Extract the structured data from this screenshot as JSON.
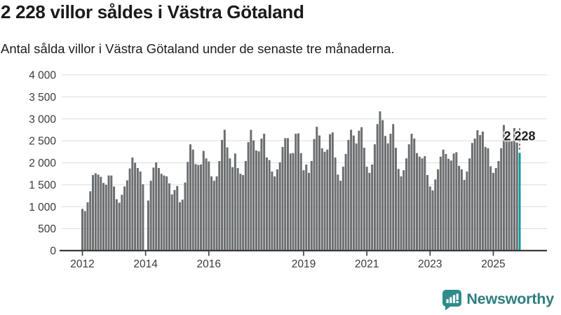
{
  "header": {
    "title": "2 228 villor såldes i Västra Götaland",
    "subtitle": "Antal sålda villor i Västra Götaland under de senaste tre månaderna."
  },
  "chart_data": {
    "type": "bar",
    "title": "2 228 villor såldes i Västra Götaland",
    "subtitle": "Antal sålda villor i Västra Götaland under de senaste tre månaderna.",
    "x_unit": "month",
    "x_range_years": "2012 till 2025",
    "ylim": [
      0,
      4000
    ],
    "grid": true,
    "y_ticks": [
      {
        "value": 0,
        "label": "0"
      },
      {
        "value": 500,
        "label": "500"
      },
      {
        "value": 1000,
        "label": "1 000"
      },
      {
        "value": 1500,
        "label": "1 500"
      },
      {
        "value": 2000,
        "label": "2 000"
      },
      {
        "value": 2500,
        "label": "2 500"
      },
      {
        "value": 3000,
        "label": "3 000"
      },
      {
        "value": 3500,
        "label": "3 500"
      },
      {
        "value": 4000,
        "label": "4 000"
      }
    ],
    "x_ticks": [
      {
        "label": "2012",
        "index": 0
      },
      {
        "label": "2014",
        "index": 24
      },
      {
        "label": "2016",
        "index": 48
      },
      {
        "label": "2019",
        "index": 84
      },
      {
        "label": "2021",
        "index": 108
      },
      {
        "label": "2023",
        "index": 132
      },
      {
        "label": "2025",
        "index": 156
      }
    ],
    "values": [
      950,
      900,
      1100,
      1350,
      1720,
      1760,
      1730,
      1680,
      1540,
      1500,
      1710,
      1710,
      1460,
      1170,
      1090,
      1270,
      1460,
      1600,
      1870,
      2120,
      2000,
      1880,
      1800,
      1510,
      null,
      1140,
      1590,
      1890,
      2010,
      1880,
      1750,
      1710,
      1690,
      1530,
      1280,
      1380,
      1470,
      1100,
      1160,
      1550,
      2020,
      2420,
      2300,
      1970,
      1950,
      1960,
      2270,
      2100,
      2030,
      1690,
      1590,
      1690,
      2040,
      2520,
      2750,
      2350,
      2100,
      1900,
      2210,
      1880,
      1750,
      1720,
      2040,
      2470,
      2750,
      2510,
      2280,
      2260,
      2550,
      2660,
      2120,
      2060,
      1800,
      1690,
      1850,
      2010,
      2360,
      2560,
      2560,
      2210,
      2220,
      2660,
      2670,
      2220,
      1830,
      1960,
      1770,
      2040,
      2540,
      2820,
      2620,
      2330,
      2250,
      2300,
      2650,
      2690,
      2120,
      1730,
      1590,
      1910,
      2200,
      2520,
      2750,
      2620,
      2440,
      2730,
      2810,
      2340,
      1910,
      1770,
      1960,
      2420,
      2880,
      3170,
      2970,
      2610,
      2440,
      2660,
      2880,
      2340,
      1860,
      1690,
      1830,
      2100,
      2420,
      2660,
      2550,
      2220,
      2140,
      2100,
      2150,
      1720,
      1460,
      1370,
      1620,
      1850,
      2140,
      2300,
      2200,
      2090,
      2050,
      2210,
      2240,
      1930,
      1850,
      1610,
      1800,
      2100,
      2450,
      2550,
      2740,
      2630,
      2710,
      2360,
      2330,
      1920,
      1770,
      1880,
      2040,
      2330,
      2860,
      2650,
      2490,
      2490,
      2790,
      2460,
      2228
    ],
    "highlight": {
      "index": 166,
      "value": 2228,
      "label": "2 228"
    },
    "colors": {
      "bar": "#6b6e70",
      "highlight": "#0d999e",
      "grid": "#e2e2e2",
      "axis": "#3b3b3b",
      "tick_text": "#3a3a3a",
      "annotation_text": "#1d1d1b"
    }
  },
  "footer": {
    "brand": "Newsworthy",
    "brand_color": "#2e7e7d",
    "icon_color": "#2f8c8a"
  }
}
